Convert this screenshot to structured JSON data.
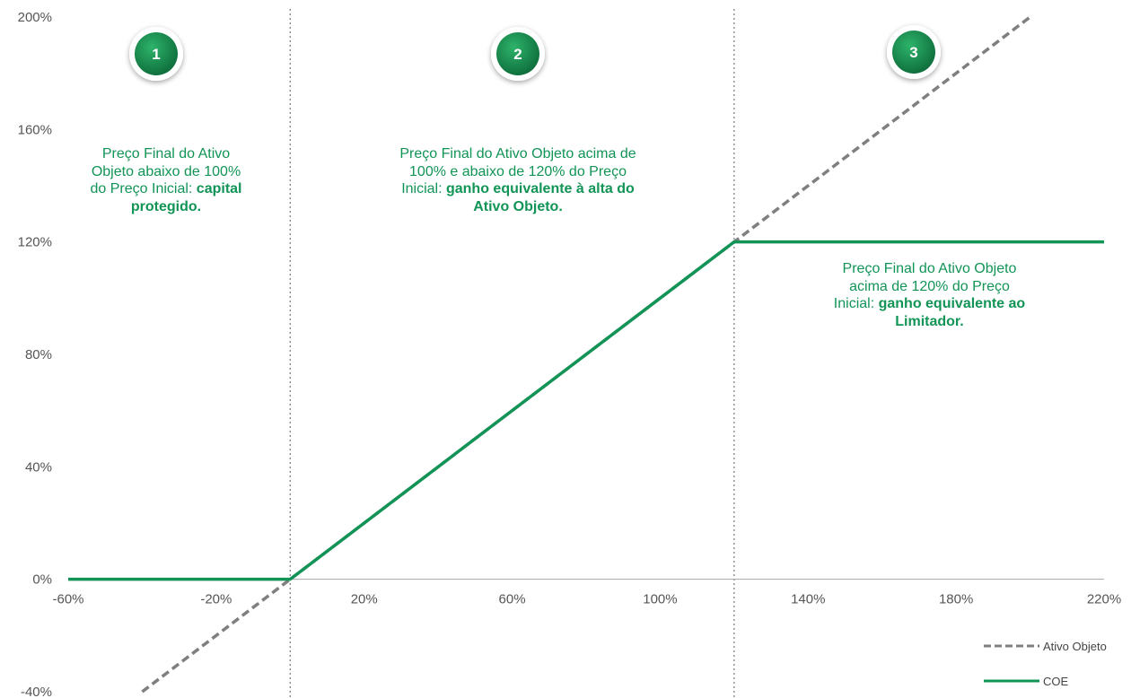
{
  "chart_data": {
    "type": "line",
    "xlim": [
      -60,
      220
    ],
    "ylim": [
      -40,
      200
    ],
    "x_ticks": [
      -60,
      -20,
      20,
      60,
      100,
      140,
      180,
      220
    ],
    "x_tick_labels": [
      "-60%",
      "-20%",
      "20%",
      "60%",
      "100%",
      "140%",
      "180%",
      "220%"
    ],
    "y_ticks": [
      -40,
      0,
      40,
      80,
      120,
      160,
      200
    ],
    "y_tick_labels": [
      "-40%",
      "0%",
      "40%",
      "80%",
      "120%",
      "160%",
      "200%"
    ],
    "region_boundaries": [
      0,
      120
    ],
    "series": [
      {
        "name": "Ativo Objeto",
        "style": "dashed",
        "color": "#7f7f7f",
        "points": [
          [
            -40,
            -40
          ],
          [
            200,
            200
          ]
        ]
      },
      {
        "name": "COE",
        "style": "solid",
        "color": "#129456",
        "points": [
          [
            -60,
            0
          ],
          [
            0,
            0
          ],
          [
            120,
            120
          ],
          [
            220,
            120
          ]
        ]
      }
    ],
    "legend_position": "bottom-right",
    "grid": false,
    "regions": [
      {
        "number": "1",
        "text_normal": "Preço Final do Ativo Objeto abaixo de 100% do Preço Inicial: ",
        "text_bold": "capital protegido."
      },
      {
        "number": "2",
        "text_normal": "Preço Final do Ativo Objeto acima de 100% e abaixo de 120% do Preço Inicial: ",
        "text_bold": "ganho equivalente à alta do Ativo Objeto."
      },
      {
        "number": "3",
        "text_normal": "Preço Final do Ativo Objeto acima de 120% do Preço Inicial: ",
        "text_bold": "ganho equivalente ao Limitador."
      }
    ]
  },
  "colors": {
    "accent": "#129456",
    "badge": "#148a4c",
    "dashed_line": "#7f7f7f",
    "axis": "#a6a6a6",
    "divider": "#808080"
  }
}
